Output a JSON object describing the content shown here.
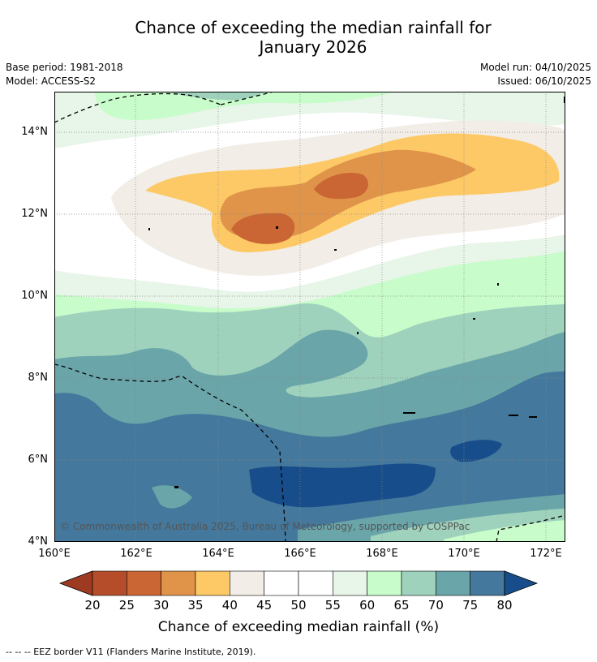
{
  "title_line1": "Chance of exceeding the median rainfall for",
  "title_line2": "January 2026",
  "base_period": "Base period: 1981-2018",
  "model": "Model: ACCESS-S2",
  "model_run": "Model run: 04/10/2025",
  "issued": "Issued: 06/10/2025",
  "lat_labels": [
    "14°N",
    "12°N",
    "10°N",
    "8°N",
    "6°N",
    "4°N"
  ],
  "lon_labels": [
    "160°E",
    "162°E",
    "164°E",
    "166°E",
    "168°E",
    "170°E",
    "172°E"
  ],
  "copyright": "© Commonwealth of Australia 2025, Bureau of Meteorology, supported by COSPPac",
  "colorbar": {
    "ticks": [
      "20",
      "25",
      "30",
      "35",
      "40",
      "45",
      "50",
      "55",
      "60",
      "65",
      "70",
      "75",
      "80"
    ],
    "colors": [
      "#9e3a22",
      "#b54d2a",
      "#ca6634",
      "#e0944a",
      "#fdc966",
      "#f2ede6",
      "#ffffff",
      "#ffffff",
      "#e8f5e9",
      "#c8fccb",
      "#9fd2bc",
      "#6aa5a9",
      "#44789c",
      "#174d8a"
    ],
    "label": "Chance of exceeding median rainfall (%)"
  },
  "eez_note": "-- -- -- EEZ border V11 (Flanders Marine Institute, 2019).",
  "colors": {
    "c35_40": "#fdc966",
    "c30_35": "#e0944a",
    "c25_30": "#ca6634",
    "c40_45": "#f2ede6",
    "c55_60": "#e8f5e9",
    "c60_65": "#c8fccb",
    "c65_70": "#9fd2bc",
    "c70_75": "#6aa5a9",
    "c75_80": "#44789c",
    "c80p": "#174d8a"
  }
}
